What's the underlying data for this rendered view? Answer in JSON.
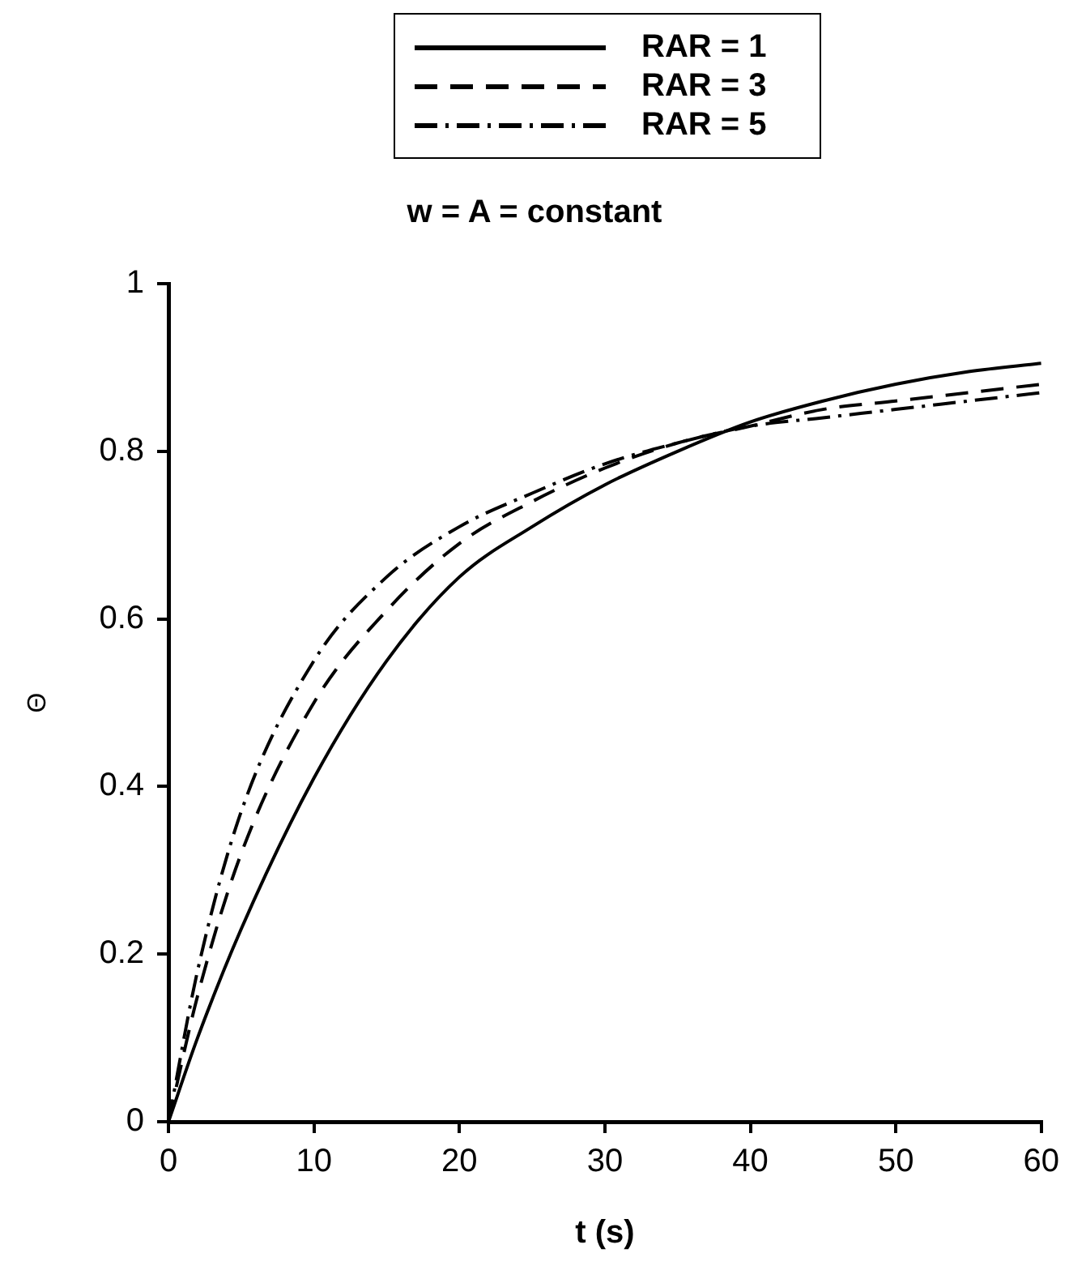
{
  "chart_data": {
    "type": "line",
    "title": "w = A = constant",
    "xlabel": "t (s)",
    "ylabel": "Θ",
    "x": [
      0,
      2,
      5,
      10,
      15,
      20,
      25,
      30,
      35,
      40,
      45,
      50,
      55,
      60
    ],
    "series": [
      {
        "name": "RAR = 1",
        "color": "#000000",
        "line_style": "solid",
        "values": [
          0,
          0.1,
          0.23,
          0.41,
          0.55,
          0.65,
          0.71,
          0.76,
          0.8,
          0.835,
          0.86,
          0.88,
          0.895,
          0.905
        ]
      },
      {
        "name": "RAR = 3",
        "color": "#000000",
        "line_style": "dashed",
        "values": [
          0,
          0.15,
          0.32,
          0.5,
          0.61,
          0.69,
          0.74,
          0.78,
          0.81,
          0.83,
          0.85,
          0.86,
          0.87,
          0.88
        ]
      },
      {
        "name": "RAR = 5",
        "color": "#000000",
        "line_style": "dashdot",
        "values": [
          0,
          0.18,
          0.37,
          0.55,
          0.65,
          0.71,
          0.75,
          0.785,
          0.81,
          0.83,
          0.84,
          0.85,
          0.86,
          0.87
        ]
      }
    ],
    "xlim": [
      0,
      60
    ],
    "xticks": [
      0,
      10,
      20,
      30,
      40,
      50,
      60
    ],
    "ylim": [
      0,
      1
    ],
    "yticks": [
      0,
      0.2,
      0.4,
      0.6,
      0.8,
      1
    ],
    "grid": false,
    "legend": "top",
    "marker": "none"
  }
}
